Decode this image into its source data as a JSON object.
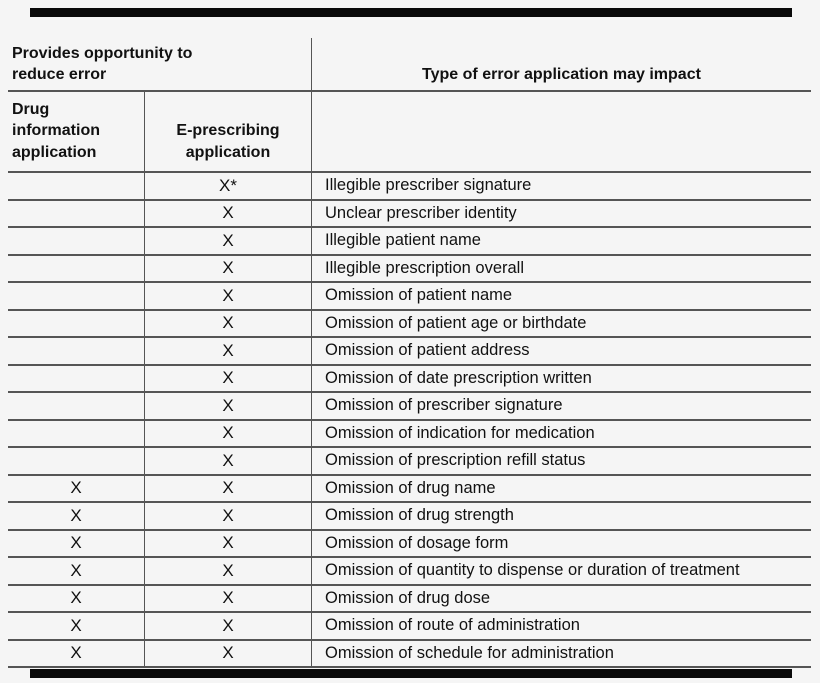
{
  "colors": {
    "bg": "#f5f5f5",
    "line": "#555555",
    "bar": "#0a0a0a",
    "text": "#111111"
  },
  "table": {
    "left_header": "Provides opportunity to\nreduce error",
    "right_header": "Type of error application may impact",
    "columns": [
      {
        "label": "Drug\ninformation\napplication"
      },
      {
        "label": "E-prescribing\napplication"
      },
      {
        "label": ""
      }
    ],
    "rows": [
      {
        "drug_info": "",
        "e_prescribing": "X*",
        "error_type": "Illegible prescriber signature"
      },
      {
        "drug_info": "",
        "e_prescribing": "X",
        "error_type": "Unclear prescriber identity"
      },
      {
        "drug_info": "",
        "e_prescribing": "X",
        "error_type": "Illegible patient name"
      },
      {
        "drug_info": "",
        "e_prescribing": "X",
        "error_type": "Illegible prescription overall"
      },
      {
        "drug_info": "",
        "e_prescribing": "X",
        "error_type": "Omission of patient name"
      },
      {
        "drug_info": "",
        "e_prescribing": "X",
        "error_type": "Omission of patient age or birthdate"
      },
      {
        "drug_info": "",
        "e_prescribing": "X",
        "error_type": "Omission of patient address"
      },
      {
        "drug_info": "",
        "e_prescribing": "X",
        "error_type": "Omission of date prescription written"
      },
      {
        "drug_info": "",
        "e_prescribing": "X",
        "error_type": "Omission of prescriber signature"
      },
      {
        "drug_info": "",
        "e_prescribing": "X",
        "error_type": "Omission of indication for medication"
      },
      {
        "drug_info": "",
        "e_prescribing": "X",
        "error_type": "Omission of prescription refill status"
      },
      {
        "drug_info": "X",
        "e_prescribing": "X",
        "error_type": "Omission of drug name"
      },
      {
        "drug_info": "X",
        "e_prescribing": "X",
        "error_type": "Omission of drug strength"
      },
      {
        "drug_info": "X",
        "e_prescribing": "X",
        "error_type": "Omission of dosage form"
      },
      {
        "drug_info": "X",
        "e_prescribing": "X",
        "error_type": "Omission of quantity to dispense or duration of treatment"
      },
      {
        "drug_info": "X",
        "e_prescribing": "X",
        "error_type": "Omission of drug dose"
      },
      {
        "drug_info": "X",
        "e_prescribing": "X",
        "error_type": "Omission of route of administration"
      },
      {
        "drug_info": "X",
        "e_prescribing": "X",
        "error_type": "Omission of schedule for administration"
      }
    ]
  }
}
